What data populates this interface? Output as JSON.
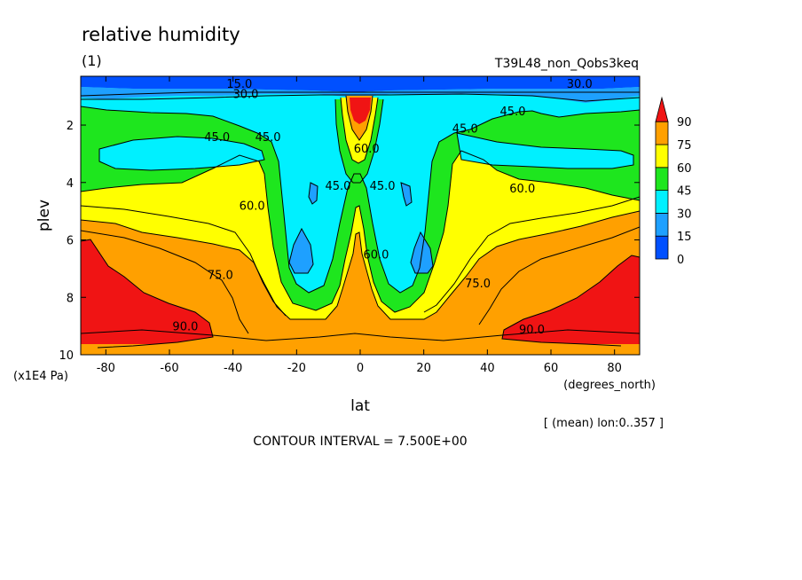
{
  "header": {
    "title": "relative humidity",
    "units": "(1)",
    "run_name": "T39L48_non_Qobs3keq"
  },
  "footer": {
    "mean_note": "[ (mean) lon:0..357 ]",
    "contour_interval": "CONTOUR INTERVAL = 7.500E+00"
  },
  "chart_data": {
    "type": "heatmap",
    "title": "relative humidity",
    "xlabel": "lat",
    "xunits": "(degrees_north)",
    "ylabel": "plev",
    "yunits": "(x1E4 Pa)",
    "xlim": [
      -87.9,
      87.9
    ],
    "ylim": [
      10,
      0.3
    ],
    "y_inverted": true,
    "xticks": [
      -80,
      -60,
      -40,
      -20,
      0,
      20,
      40,
      60,
      80
    ],
    "xtick_labels": [
      "-80",
      "-60",
      "-40",
      "-20",
      "0",
      "20",
      "40",
      "60",
      "80"
    ],
    "yticks": [
      2,
      4,
      6,
      8,
      10
    ],
    "ytick_labels": [
      "2",
      "4",
      "6",
      "8",
      "10"
    ],
    "contour_interval": 7.5,
    "colorbar": {
      "levels": [
        0,
        15,
        30,
        45,
        60,
        75,
        90
      ],
      "labels": [
        "0",
        "15",
        "30",
        "45",
        "60",
        "75",
        "90"
      ],
      "colors": [
        "#0050ff",
        "#1ea0ff",
        "#00f0ff",
        "#1ee61e",
        "#ffff00",
        "#ffa000",
        "#f01414"
      ],
      "extend": "max"
    },
    "contour_labels": [
      {
        "text": "15.0",
        "lat": -38,
        "plev": 0.55
      },
      {
        "text": "30.0",
        "lat": -36,
        "plev": 0.9
      },
      {
        "text": "30.0",
        "lat": 69,
        "plev": 0.55
      },
      {
        "text": "45.0",
        "lat": -45,
        "plev": 2.4
      },
      {
        "text": "45.0",
        "lat": -29,
        "plev": 2.4
      },
      {
        "text": "45.0",
        "lat": -7,
        "plev": 4.1
      },
      {
        "text": "45.0",
        "lat": 7,
        "plev": 4.1
      },
      {
        "text": "45.0",
        "lat": 48,
        "plev": 1.5
      },
      {
        "text": "45.0",
        "lat": 33,
        "plev": 2.1
      },
      {
        "text": "60.0",
        "lat": 2,
        "plev": 2.8
      },
      {
        "text": "60.0",
        "lat": 5,
        "plev": 6.5
      },
      {
        "text": "60.0",
        "lat": -34,
        "plev": 4.8
      },
      {
        "text": "60.0",
        "lat": 51,
        "plev": 4.2
      },
      {
        "text": "75.0",
        "lat": -44,
        "plev": 7.2
      },
      {
        "text": "75.0",
        "lat": 37,
        "plev": 7.5
      },
      {
        "text": "90.0",
        "lat": -55,
        "plev": 9.0
      },
      {
        "text": "90.0",
        "lat": 54,
        "plev": 9.1
      }
    ]
  }
}
